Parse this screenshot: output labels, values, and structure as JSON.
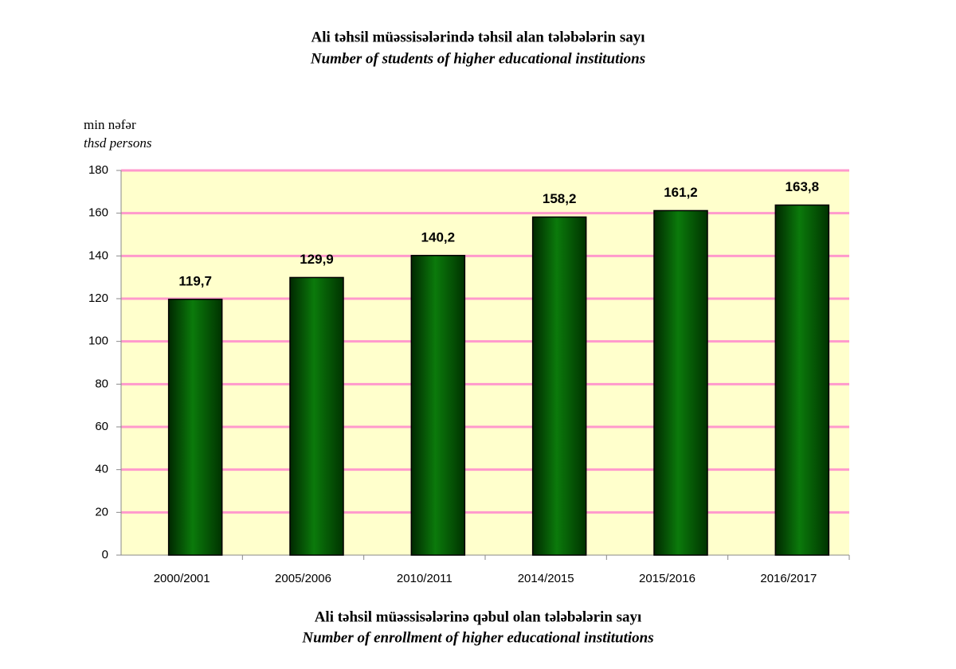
{
  "chart_data": {
    "type": "bar",
    "title": "Ali təhsil müəssisələrində təhsil alan tələbələrin sayı",
    "subtitle": "Number of students of higher educational institutions",
    "ylabel": [
      "min nəfər",
      "thsd persons"
    ],
    "categories": [
      "2000/2001",
      "2005/2006",
      "2010/2011",
      "2014/2015",
      "2015/2016",
      "2016/2017"
    ],
    "values": [
      119.7,
      129.9,
      140.2,
      158.2,
      161.2,
      163.8
    ],
    "value_labels": [
      "119,7",
      "129,9",
      "140,2",
      "158,2",
      "161,2",
      "163,8"
    ],
    "color": "#0b7a0b",
    "background": "#ffffcc",
    "grid_color": "#ff99cc",
    "ylim": [
      0,
      180
    ],
    "yticks": [
      0,
      20,
      40,
      60,
      80,
      100,
      120,
      140,
      160,
      180
    ],
    "grid": true
  },
  "footer": {
    "title": "Ali təhsil müəssisələrinə qəbul olan tələbələrin sayı",
    "subtitle": "Number of enrollment of higher educational institutions"
  }
}
